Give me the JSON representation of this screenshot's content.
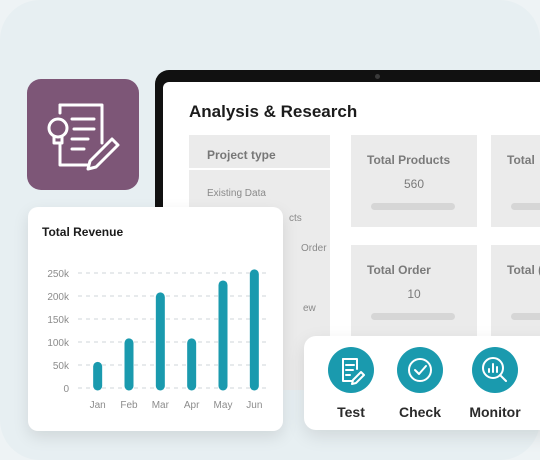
{
  "dashboard": {
    "title": "Analysis & Research",
    "side_panel": {
      "heading": "Project type",
      "items": [
        "Existing Data",
        "cts",
        "Order",
        "ew"
      ]
    },
    "cards": [
      {
        "label": "Total Products",
        "value": "560"
      },
      {
        "label": "Total",
        "value": ""
      },
      {
        "label": "Total Order",
        "value": "10"
      },
      {
        "label": "Total (",
        "value": ""
      }
    ]
  },
  "app_icon": {
    "name": "document-lightbulb-pen-icon",
    "color": "#7d5677"
  },
  "revenue": {
    "title": "Total Revenue",
    "bar_color": "#1a9aae"
  },
  "chart_data": {
    "type": "bar",
    "title": "Total Revenue",
    "categories": [
      "Jan",
      "Feb",
      "Mar",
      "Apr",
      "May",
      "Jun"
    ],
    "values": [
      47000,
      98000,
      198000,
      98000,
      224000,
      248000
    ],
    "y_ticks": [
      "0",
      "50k",
      "100k",
      "150k",
      "200k",
      "250k"
    ],
    "ylim": [
      0,
      250000
    ],
    "grid": true,
    "xlabel": "",
    "ylabel": ""
  },
  "actions": [
    {
      "label": "Test",
      "icon": "document-edit-icon"
    },
    {
      "label": "Check",
      "icon": "check-circle-icon"
    },
    {
      "label": "Monitor",
      "icon": "chart-magnifier-icon"
    }
  ],
  "colors": {
    "accent": "#1a9aae",
    "icon_bg": "#7d5677"
  }
}
